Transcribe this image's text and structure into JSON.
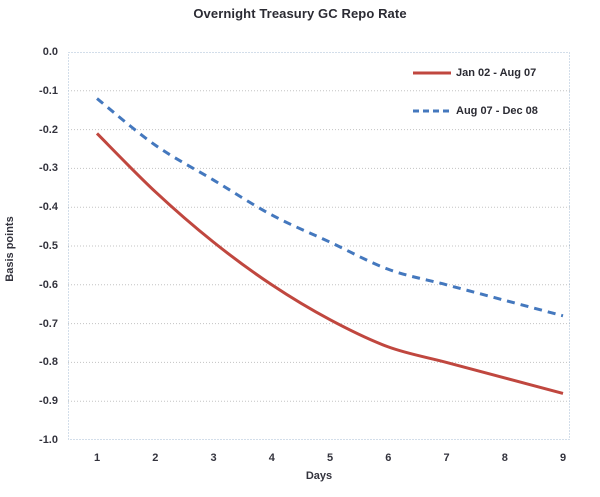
{
  "title": "Overnight Treasury GC Repo Rate",
  "chart_data": {
    "type": "line",
    "title": "Overnight Treasury GC Repo Rate",
    "xlabel": "Days",
    "ylabel": "Basis points",
    "x": [
      1,
      2,
      3,
      4,
      5,
      6,
      7,
      8,
      9
    ],
    "xtick_labels": [
      "1",
      "2",
      "3",
      "4",
      "5",
      "6",
      "7",
      "8",
      "9"
    ],
    "ylim": [
      -1.0,
      0.0
    ],
    "ytick_step": 0.1,
    "ytick_labels": [
      "0.0",
      "-0.1",
      "-0.2",
      "-0.3",
      "-0.4",
      "-0.5",
      "-0.6",
      "-0.7",
      "-0.8",
      "-0.9",
      "-1.0"
    ],
    "grid": true,
    "legend_position": "top-right-inside",
    "series": [
      {
        "name": "Jan 02 - Aug 07",
        "style": "solid",
        "color": "#c0473f",
        "values": [
          -0.21,
          -0.36,
          -0.49,
          -0.6,
          -0.69,
          -0.76,
          -0.8,
          -0.84,
          -0.88
        ]
      },
      {
        "name": "Aug 07 - Dec 08",
        "style": "dashed",
        "color": "#4478be",
        "values": [
          -0.12,
          -0.24,
          -0.33,
          -0.42,
          -0.49,
          -0.56,
          -0.6,
          -0.64,
          -0.68
        ]
      }
    ]
  },
  "colors": {
    "grid": "#c3c3c3",
    "plot_border": "#a7bed6",
    "text": "#33333d",
    "background": "#ffffff"
  }
}
